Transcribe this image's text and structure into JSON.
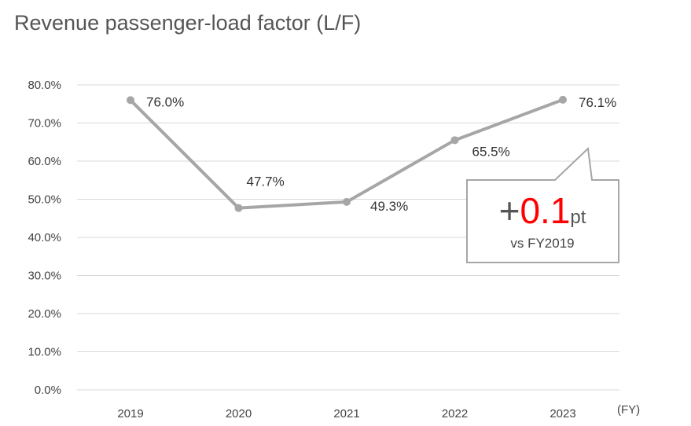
{
  "chart_data": {
    "type": "line",
    "title": "Revenue passenger-load factor (L/F)",
    "x_unit": "(FY)",
    "categories": [
      "2019",
      "2020",
      "2021",
      "2022",
      "2023"
    ],
    "values": [
      76.0,
      47.7,
      49.3,
      65.5,
      76.1
    ],
    "data_labels": [
      "76.0%",
      "47.7%",
      "49.3%",
      "65.5%",
      "76.1%"
    ],
    "y_ticks": [
      "0.0%",
      "10.0%",
      "20.0%",
      "30.0%",
      "40.0%",
      "50.0%",
      "60.0%",
      "70.0%",
      "80.0%"
    ],
    "ylim": [
      0,
      80
    ],
    "grid": true,
    "legend": "none",
    "series_color": "#a6a6a6",
    "callout": {
      "sign": "+",
      "value": "0.1",
      "unit": "pt",
      "subtitle": "vs FY2019",
      "value_color": "#ff0000"
    }
  }
}
